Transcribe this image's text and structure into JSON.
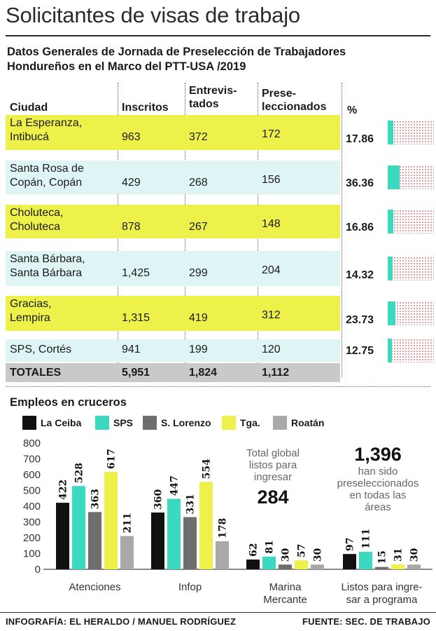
{
  "title": "Solicitantes de visas de trabajo",
  "subtitle_line1": "Datos Generales de Jornada de Preselección de Trabajadores",
  "subtitle_line2": "Hondureños en el Marco del PTT-USA /2019",
  "table": {
    "headers": {
      "ciudad": "Ciudad",
      "inscritos": "Inscritos",
      "entrevistados_1": "Entrevis-",
      "entrevistados_2": "tados",
      "preseleccionados_1": "Prese-",
      "preseleccionados_2": "leccionados",
      "pct": "%"
    },
    "rows": [
      {
        "city1": "La Esperanza,",
        "city2": "Intibucá",
        "inscritos": "963",
        "entrevistados": "372",
        "preseleccionados": "172",
        "pct": "17.86",
        "pct_value": 17.86
      },
      {
        "city1": "Santa Rosa de",
        "city2": "Copán, Copán",
        "inscritos": "429",
        "entrevistados": "268",
        "preseleccionados": "156",
        "pct": "36.36",
        "pct_value": 36.36
      },
      {
        "city1": "Choluteca,",
        "city2": "Choluteca",
        "inscritos": "878",
        "entrevistados": "267",
        "preseleccionados": "148",
        "pct": "16.86",
        "pct_value": 16.86
      },
      {
        "city1": "Santa Bárbara,",
        "city2": "Santa Bárbara",
        "inscritos": "1,425",
        "entrevistados": "299",
        "preseleccionados": "204",
        "pct": "14.32",
        "pct_value": 14.32
      },
      {
        "city1": "Gracias,",
        "city2": "Lempira",
        "inscritos": "1,315",
        "entrevistados": "419",
        "preseleccionados": "312",
        "pct": "23.73",
        "pct_value": 23.73
      },
      {
        "city1": "SPS, Cortés",
        "city2": "",
        "inscritos": "941",
        "entrevistados": "199",
        "preseleccionados": "120",
        "pct": "12.75",
        "pct_value": 12.75
      }
    ],
    "totals": {
      "label": "TOTALES",
      "inscritos": "5,951",
      "entrevistados": "1,824",
      "preseleccionados": "1,112"
    },
    "colors": {
      "yellow": "#eef14a",
      "cyan": "#dff5f5",
      "bar": "#3ad9c0",
      "track_dots": "#e07a7a"
    }
  },
  "chart_data": {
    "type": "bar",
    "title": "Empleos en cruceros",
    "categories": [
      "Atenciones",
      "Infop",
      "Marina Mercante",
      "Listos para ingre-sar a programa"
    ],
    "category_lines": [
      [
        "Atenciones"
      ],
      [
        "Infop"
      ],
      [
        "Marina",
        "Mercante"
      ],
      [
        "Listos para ingre-",
        "sar a programa"
      ]
    ],
    "series": [
      {
        "name": "La Ceiba",
        "color": "#111111",
        "values": [
          422,
          360,
          62,
          97
        ]
      },
      {
        "name": "SPS",
        "color": "#3ad9c0",
        "values": [
          528,
          447,
          81,
          111
        ]
      },
      {
        "name": "S. Lorenzo",
        "color": "#6e6e6e",
        "values": [
          363,
          331,
          30,
          15
        ]
      },
      {
        "name": "Tga.",
        "color": "#eef14a",
        "values": [
          617,
          554,
          57,
          31
        ]
      },
      {
        "name": "Roatán",
        "color": "#a9a9a9",
        "values": [
          211,
          178,
          30,
          30
        ]
      }
    ],
    "ylim": [
      0,
      800
    ],
    "yticks": [
      0,
      100,
      200,
      300,
      400,
      500,
      600,
      700,
      800
    ],
    "grid": false,
    "legend_position": "top"
  },
  "annotations": {
    "total_line1": "Total global",
    "total_line2": "listos para",
    "total_line3": "ingresar",
    "total_value": "284",
    "presel_value": "1,396",
    "presel_line1": "han sido",
    "presel_line2": "preseleccionados",
    "presel_line3": "en todas las",
    "presel_line4": "áreas"
  },
  "footer": {
    "credit": "INFOGRAFÍA: EL HERALDO / MANUEL RODRÍGUEZ",
    "source": "FUENTE: SEC. DE TRABAJO"
  }
}
